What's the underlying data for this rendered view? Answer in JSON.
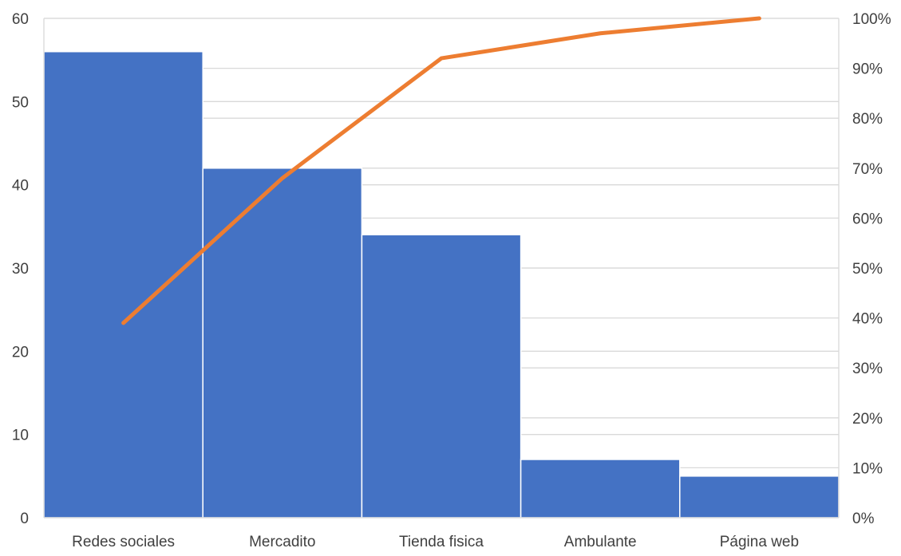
{
  "chart_data": {
    "type": "bar",
    "title": "",
    "xlabel": "",
    "ylabel": "",
    "categories": [
      "Redes sociales",
      "Mercadito",
      "Tienda fisica",
      "Ambulante",
      "Página web"
    ],
    "series": [
      {
        "type": "bar",
        "values": [
          56,
          42,
          34,
          7,
          5
        ]
      },
      {
        "type": "line",
        "axis": "right",
        "values": [
          39,
          68,
          92,
          97,
          100
        ]
      }
    ],
    "ylim": [
      0,
      60
    ],
    "yticks": [
      "0",
      "10",
      "20",
      "30",
      "40",
      "50",
      "60"
    ],
    "y2lim": [
      0,
      100
    ],
    "y2ticks": [
      "0%",
      "10%",
      "20%",
      "30%",
      "40%",
      "50%",
      "60%",
      "70%",
      "80%",
      "90%",
      "100%"
    ],
    "grid": true,
    "legend": "none",
    "colors": {
      "bar": "#4472C4",
      "line": "#ED7D31",
      "grid": "#D9D9D9",
      "text": "#404040"
    }
  }
}
